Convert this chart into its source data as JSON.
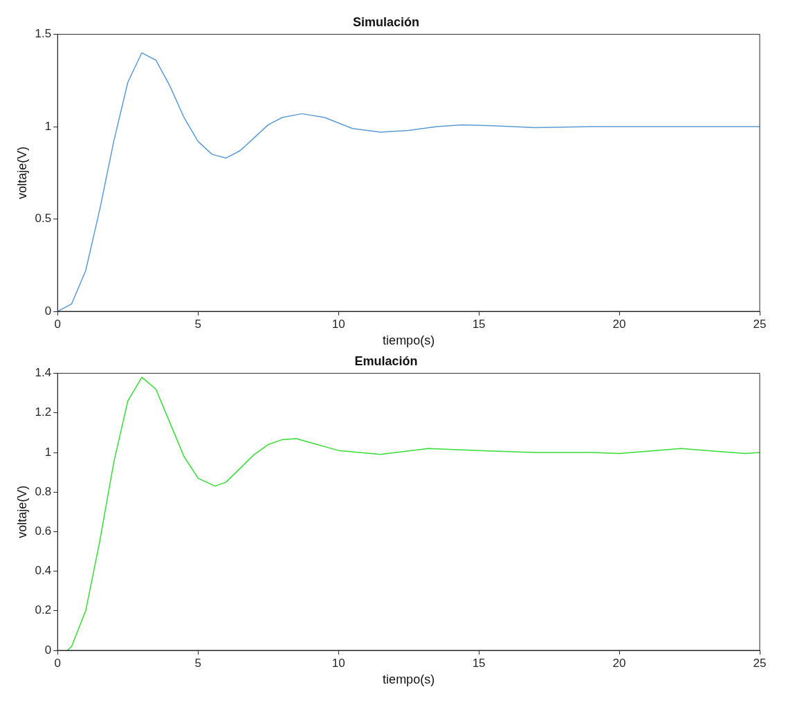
{
  "chart_data": [
    {
      "type": "line",
      "title": "Simulación",
      "xlabel": "tiempo(s)",
      "ylabel": "voltaje(V)",
      "grid": false,
      "marker": "none",
      "line_style": "solid",
      "xlim": [
        0,
        25
      ],
      "ylim": [
        0,
        1.5
      ],
      "xticks": [
        0,
        5,
        10,
        15,
        20,
        25
      ],
      "yticks": [
        0,
        0.5,
        1,
        1.5
      ],
      "x": [
        0,
        0.5,
        1,
        1.5,
        2,
        2.5,
        3,
        3.5,
        4,
        4.5,
        5,
        5.5,
        6,
        6.5,
        7,
        7.5,
        8,
        8.7,
        9.5,
        10,
        10.5,
        11.5,
        12.5,
        13.5,
        14.4,
        15.5,
        17,
        19,
        21,
        25
      ],
      "series": [
        {
          "color": "#5b9bd5",
          "values": [
            0,
            0.04,
            0.22,
            0.55,
            0.92,
            1.24,
            1.4,
            1.36,
            1.22,
            1.05,
            0.92,
            0.85,
            0.83,
            0.87,
            0.94,
            1.01,
            1.05,
            1.07,
            1.05,
            1.02,
            0.99,
            0.97,
            0.98,
            1,
            1.01,
            1.005,
            0.995,
            1,
            1,
            1
          ]
        }
      ]
    },
    {
      "type": "line",
      "title": "Emulación",
      "xlabel": "tiempo(s)",
      "ylabel": "voltaje(V)",
      "grid": false,
      "marker": "none",
      "line_style": "solid",
      "xlim": [
        0,
        25
      ],
      "ylim": [
        0,
        1.4
      ],
      "xticks": [
        0,
        5,
        10,
        15,
        20,
        25
      ],
      "yticks": [
        0,
        0.2,
        0.4,
        0.6,
        0.8,
        1,
        1.2,
        1.4
      ],
      "x": [
        0.35,
        0.5,
        1,
        1.5,
        2,
        2.5,
        3,
        3.5,
        4,
        4.5,
        5,
        5.6,
        6,
        6.5,
        7,
        7.5,
        8,
        8.5,
        9,
        10,
        11.5,
        13.2,
        15,
        17,
        19,
        20,
        22.2,
        23.5,
        24.5,
        25
      ],
      "series": [
        {
          "color": "#33dd33",
          "values": [
            0,
            0.02,
            0.2,
            0.55,
            0.95,
            1.26,
            1.38,
            1.32,
            1.15,
            0.98,
            0.87,
            0.83,
            0.85,
            0.92,
            0.99,
            1.04,
            1.065,
            1.07,
            1.05,
            1.01,
            0.99,
            1.02,
            1.01,
            1,
            1,
            0.995,
            1.02,
            1.005,
            0.995,
            1
          ]
        }
      ]
    }
  ]
}
